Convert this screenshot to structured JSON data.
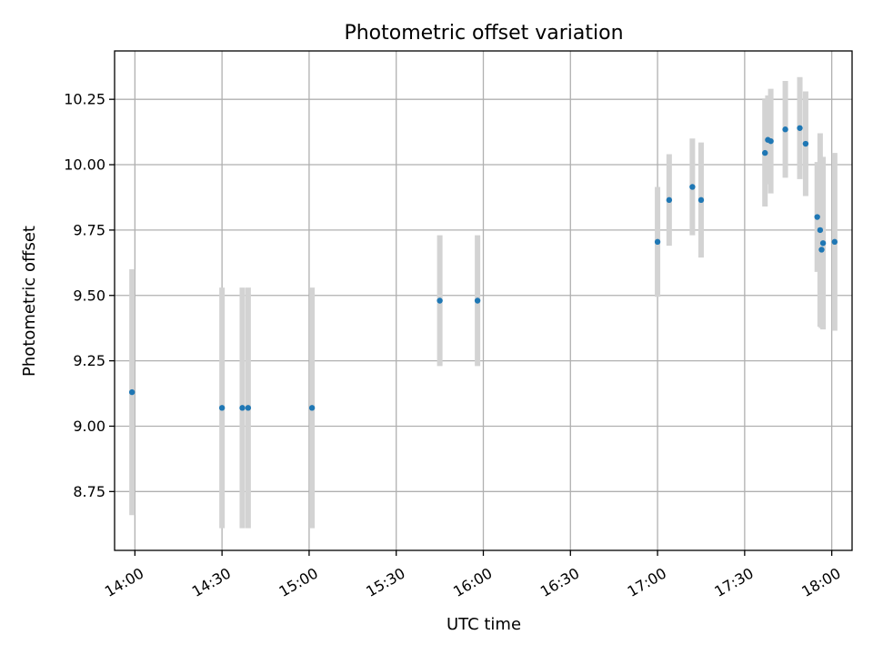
{
  "chart_data": {
    "type": "scatter",
    "title": "Photometric offset variation",
    "xlabel": "UTC time",
    "ylabel": "Photometric offset",
    "xlim": [
      "13:53",
      "18:07"
    ],
    "ylim": [
      8.525,
      10.435
    ],
    "x_ticks": [
      "14:00",
      "14:30",
      "15:00",
      "15:30",
      "16:00",
      "16:30",
      "17:00",
      "17:30",
      "18:00"
    ],
    "y_ticks": [
      8.75,
      9.0,
      9.25,
      9.5,
      9.75,
      10.0,
      10.25
    ],
    "grid": true,
    "point_color": "#1f77b4",
    "errorbar_color": "#d3d3d3",
    "points": [
      {
        "x": "13:59",
        "y": 9.13,
        "err": 0.47
      },
      {
        "x": "14:30",
        "y": 9.07,
        "err": 0.46
      },
      {
        "x": "14:37",
        "y": 9.07,
        "err": 0.46
      },
      {
        "x": "14:39",
        "y": 9.07,
        "err": 0.46
      },
      {
        "x": "15:01",
        "y": 9.07,
        "err": 0.46
      },
      {
        "x": "15:45",
        "y": 9.48,
        "err": 0.25
      },
      {
        "x": "15:58",
        "y": 9.48,
        "err": 0.25
      },
      {
        "x": "17:00",
        "y": 9.705,
        "err": 0.21
      },
      {
        "x": "17:04",
        "y": 9.865,
        "err": 0.175
      },
      {
        "x": "17:12",
        "y": 9.915,
        "err": 0.185
      },
      {
        "x": "17:15",
        "y": 9.865,
        "err": 0.22
      },
      {
        "x": "17:37",
        "y": 10.045,
        "err": 0.205
      },
      {
        "x": "17:38",
        "y": 10.095,
        "err": 0.17
      },
      {
        "x": "17:39",
        "y": 10.09,
        "err": 0.2
      },
      {
        "x": "17:44",
        "y": 10.135,
        "err": 0.185
      },
      {
        "x": "17:49",
        "y": 10.14,
        "err": 0.195
      },
      {
        "x": "17:51",
        "y": 10.08,
        "err": 0.2
      },
      {
        "x": "17:55",
        "y": 9.8,
        "err": 0.21
      },
      {
        "x": "17:56",
        "y": 9.75,
        "err": 0.37
      },
      {
        "x": "17:56.5",
        "y": 9.675,
        "err": 0.3
      },
      {
        "x": "17:57",
        "y": 9.7,
        "err": 0.33
      },
      {
        "x": "18:01",
        "y": 9.705,
        "err": 0.34
      }
    ]
  }
}
